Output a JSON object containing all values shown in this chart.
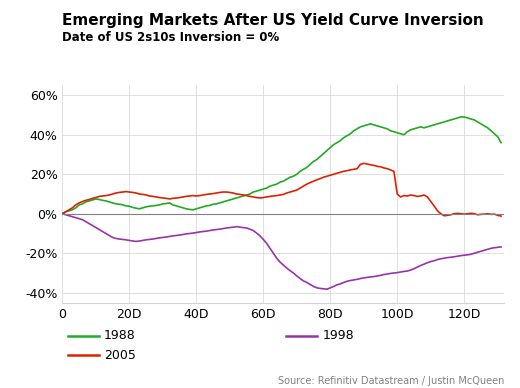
{
  "title": "Emerging Markets After US Yield Curve Inversion",
  "subtitle": "Date of US 2s10s Inversion = 0%",
  "source": "Source: Refinitiv Datastream / Justin McQueen",
  "ylim": [
    -0.45,
    0.65
  ],
  "xlim": [
    0,
    132
  ],
  "xticks": [
    0,
    20,
    40,
    60,
    80,
    100,
    120
  ],
  "xtick_labels": [
    "0",
    "20D",
    "40D",
    "60D",
    "80D",
    "100D",
    "120D"
  ],
  "yticks": [
    -0.4,
    -0.2,
    0.0,
    0.2,
    0.4,
    0.6
  ],
  "ytick_labels": [
    "-40%",
    "-20%",
    "0%",
    "20%",
    "40%",
    "60%"
  ],
  "legend": [
    {
      "label": "1988",
      "color": "#22aa22"
    },
    {
      "label": "2005",
      "color": "#dd2200"
    },
    {
      "label": "1998",
      "color": "#9933aa"
    }
  ],
  "series": {
    "1988": {
      "color": "#22aa22",
      "x": [
        0,
        1,
        2,
        3,
        4,
        5,
        6,
        7,
        8,
        9,
        10,
        11,
        12,
        13,
        14,
        15,
        16,
        17,
        18,
        19,
        20,
        21,
        22,
        23,
        24,
        25,
        26,
        27,
        28,
        29,
        30,
        31,
        32,
        33,
        34,
        35,
        36,
        37,
        38,
        39,
        40,
        41,
        42,
        43,
        44,
        45,
        46,
        47,
        48,
        49,
        50,
        51,
        52,
        53,
        54,
        55,
        56,
        57,
        58,
        59,
        60,
        61,
        62,
        63,
        64,
        65,
        66,
        67,
        68,
        69,
        70,
        71,
        72,
        73,
        74,
        75,
        76,
        77,
        78,
        79,
        80,
        81,
        82,
        83,
        84,
        85,
        86,
        87,
        88,
        89,
        90,
        91,
        92,
        93,
        94,
        95,
        96,
        97,
        98,
        99,
        100,
        101,
        102,
        103,
        104,
        105,
        106,
        107,
        108,
        109,
        110,
        111,
        112,
        113,
        114,
        115,
        116,
        117,
        118,
        119,
        120,
        121,
        122,
        123,
        124,
        125,
        126,
        127,
        128,
        129,
        130,
        131
      ],
      "y": [
        0.0,
        0.01,
        0.015,
        0.02,
        0.03,
        0.045,
        0.05,
        0.06,
        0.065,
        0.07,
        0.075,
        0.072,
        0.068,
        0.065,
        0.06,
        0.055,
        0.05,
        0.048,
        0.045,
        0.04,
        0.038,
        0.032,
        0.028,
        0.025,
        0.03,
        0.035,
        0.038,
        0.04,
        0.042,
        0.045,
        0.05,
        0.052,
        0.055,
        0.045,
        0.04,
        0.035,
        0.03,
        0.025,
        0.022,
        0.02,
        0.025,
        0.03,
        0.035,
        0.04,
        0.042,
        0.048,
        0.05,
        0.055,
        0.06,
        0.065,
        0.07,
        0.075,
        0.08,
        0.085,
        0.09,
        0.095,
        0.1,
        0.11,
        0.115,
        0.12,
        0.125,
        0.13,
        0.14,
        0.145,
        0.15,
        0.16,
        0.165,
        0.175,
        0.185,
        0.19,
        0.2,
        0.215,
        0.225,
        0.235,
        0.25,
        0.265,
        0.275,
        0.29,
        0.305,
        0.32,
        0.335,
        0.35,
        0.36,
        0.37,
        0.385,
        0.395,
        0.405,
        0.42,
        0.43,
        0.44,
        0.445,
        0.45,
        0.455,
        0.45,
        0.445,
        0.44,
        0.435,
        0.43,
        0.42,
        0.415,
        0.41,
        0.405,
        0.4,
        0.415,
        0.425,
        0.43,
        0.435,
        0.44,
        0.435,
        0.44,
        0.445,
        0.45,
        0.455,
        0.46,
        0.465,
        0.47,
        0.475,
        0.48,
        0.485,
        0.49,
        0.49,
        0.485,
        0.48,
        0.475,
        0.465,
        0.455,
        0.445,
        0.435,
        0.42,
        0.405,
        0.39,
        0.36
      ]
    },
    "2005": {
      "color": "#dd2200",
      "x": [
        0,
        1,
        2,
        3,
        4,
        5,
        6,
        7,
        8,
        9,
        10,
        11,
        12,
        13,
        14,
        15,
        16,
        17,
        18,
        19,
        20,
        21,
        22,
        23,
        24,
        25,
        26,
        27,
        28,
        29,
        30,
        31,
        32,
        33,
        34,
        35,
        36,
        37,
        38,
        39,
        40,
        41,
        42,
        43,
        44,
        45,
        46,
        47,
        48,
        49,
        50,
        51,
        52,
        53,
        54,
        55,
        56,
        57,
        58,
        59,
        60,
        61,
        62,
        63,
        64,
        65,
        66,
        67,
        68,
        69,
        70,
        71,
        72,
        73,
        74,
        75,
        76,
        77,
        78,
        79,
        80,
        81,
        82,
        83,
        84,
        85,
        86,
        87,
        88,
        89,
        90,
        91,
        92,
        93,
        94,
        95,
        96,
        97,
        98,
        99,
        100,
        101,
        102,
        103,
        104,
        105,
        106,
        107,
        108,
        109,
        110,
        111,
        112,
        113,
        114,
        115,
        116,
        117,
        118,
        119,
        120,
        121,
        122,
        123,
        124,
        125,
        126,
        127,
        128,
        129,
        130,
        131
      ],
      "y": [
        0.0,
        0.01,
        0.02,
        0.03,
        0.045,
        0.055,
        0.062,
        0.068,
        0.072,
        0.078,
        0.082,
        0.088,
        0.09,
        0.092,
        0.095,
        0.1,
        0.105,
        0.108,
        0.11,
        0.112,
        0.11,
        0.108,
        0.105,
        0.1,
        0.098,
        0.095,
        0.09,
        0.088,
        0.085,
        0.082,
        0.08,
        0.078,
        0.075,
        0.078,
        0.08,
        0.082,
        0.085,
        0.088,
        0.09,
        0.092,
        0.09,
        0.092,
        0.095,
        0.098,
        0.1,
        0.102,
        0.105,
        0.108,
        0.11,
        0.11,
        0.108,
        0.105,
        0.1,
        0.098,
        0.095,
        0.092,
        0.088,
        0.085,
        0.082,
        0.08,
        0.082,
        0.085,
        0.088,
        0.09,
        0.092,
        0.095,
        0.098,
        0.105,
        0.11,
        0.115,
        0.12,
        0.13,
        0.14,
        0.15,
        0.158,
        0.165,
        0.172,
        0.178,
        0.185,
        0.19,
        0.195,
        0.2,
        0.205,
        0.21,
        0.215,
        0.218,
        0.222,
        0.225,
        0.228,
        0.25,
        0.255,
        0.252,
        0.248,
        0.245,
        0.24,
        0.238,
        0.232,
        0.228,
        0.222,
        0.215,
        0.1,
        0.085,
        0.092,
        0.09,
        0.095,
        0.092,
        0.088,
        0.09,
        0.095,
        0.085,
        0.062,
        0.04,
        0.015,
        0.0,
        -0.01,
        -0.008,
        -0.005,
        0.0,
        0.002,
        0.0,
        -0.002,
        0.0,
        0.002,
        0.0,
        -0.005,
        -0.003,
        -0.002,
        0.0,
        -0.003,
        -0.002,
        -0.008,
        -0.012
      ]
    },
    "1998": {
      "color": "#9933aa",
      "x": [
        0,
        1,
        2,
        3,
        4,
        5,
        6,
        7,
        8,
        9,
        10,
        11,
        12,
        13,
        14,
        15,
        16,
        17,
        18,
        19,
        20,
        21,
        22,
        23,
        24,
        25,
        26,
        27,
        28,
        29,
        30,
        31,
        32,
        33,
        34,
        35,
        36,
        37,
        38,
        39,
        40,
        41,
        42,
        43,
        44,
        45,
        46,
        47,
        48,
        49,
        50,
        51,
        52,
        53,
        54,
        55,
        56,
        57,
        58,
        59,
        60,
        61,
        62,
        63,
        64,
        65,
        66,
        67,
        68,
        69,
        70,
        71,
        72,
        73,
        74,
        75,
        76,
        77,
        78,
        79,
        80,
        81,
        82,
        83,
        84,
        85,
        86,
        87,
        88,
        89,
        90,
        91,
        92,
        93,
        94,
        95,
        96,
        97,
        98,
        99,
        100,
        101,
        102,
        103,
        104,
        105,
        106,
        107,
        108,
        109,
        110,
        111,
        112,
        113,
        114,
        115,
        116,
        117,
        118,
        119,
        120,
        121,
        122,
        123,
        124,
        125,
        126,
        127,
        128,
        129,
        130,
        131
      ],
      "y": [
        0.0,
        -0.005,
        -0.01,
        -0.015,
        -0.02,
        -0.025,
        -0.03,
        -0.04,
        -0.05,
        -0.06,
        -0.07,
        -0.08,
        -0.09,
        -0.1,
        -0.11,
        -0.12,
        -0.125,
        -0.128,
        -0.13,
        -0.132,
        -0.135,
        -0.138,
        -0.14,
        -0.138,
        -0.135,
        -0.132,
        -0.13,
        -0.128,
        -0.125,
        -0.122,
        -0.12,
        -0.118,
        -0.115,
        -0.112,
        -0.11,
        -0.108,
        -0.105,
        -0.102,
        -0.1,
        -0.098,
        -0.095,
        -0.092,
        -0.09,
        -0.088,
        -0.085,
        -0.082,
        -0.08,
        -0.078,
        -0.075,
        -0.072,
        -0.07,
        -0.068,
        -0.065,
        -0.068,
        -0.07,
        -0.072,
        -0.078,
        -0.085,
        -0.098,
        -0.112,
        -0.13,
        -0.15,
        -0.175,
        -0.2,
        -0.225,
        -0.245,
        -0.26,
        -0.275,
        -0.288,
        -0.3,
        -0.315,
        -0.328,
        -0.34,
        -0.348,
        -0.358,
        -0.368,
        -0.375,
        -0.378,
        -0.38,
        -0.382,
        -0.375,
        -0.368,
        -0.36,
        -0.355,
        -0.348,
        -0.342,
        -0.338,
        -0.335,
        -0.332,
        -0.328,
        -0.325,
        -0.322,
        -0.32,
        -0.318,
        -0.315,
        -0.312,
        -0.308,
        -0.305,
        -0.302,
        -0.3,
        -0.298,
        -0.295,
        -0.292,
        -0.29,
        -0.285,
        -0.278,
        -0.27,
        -0.262,
        -0.255,
        -0.248,
        -0.242,
        -0.238,
        -0.232,
        -0.228,
        -0.225,
        -0.222,
        -0.22,
        -0.218,
        -0.215,
        -0.212,
        -0.21,
        -0.208,
        -0.205,
        -0.2,
        -0.195,
        -0.19,
        -0.185,
        -0.18,
        -0.175,
        -0.172,
        -0.17,
        -0.168
      ]
    }
  }
}
